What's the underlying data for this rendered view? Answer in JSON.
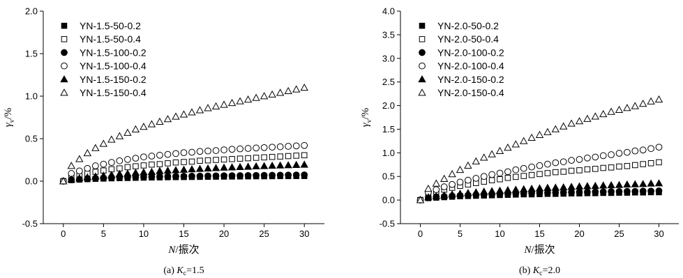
{
  "chart_data": [
    {
      "type": "scatter",
      "caption_prefix": "(a) ",
      "caption_k": "K",
      "caption_sub": "c",
      "caption_value": "=1.5",
      "xlabel_var": "N",
      "xlabel_unit": "/振次",
      "ylabel_var": "γ",
      "ylabel_sub": "v",
      "ylabel_unit": "/%",
      "xlim": [
        -2.5,
        32.5
      ],
      "ylim": [
        -0.5,
        2.0
      ],
      "xticks": [
        0,
        5,
        10,
        15,
        20,
        25,
        30
      ],
      "xtick_labels": [
        "0",
        "5",
        "10",
        "15",
        "20",
        "25",
        "30"
      ],
      "yticks": [
        -0.5,
        0.0,
        0.5,
        1.0,
        1.5,
        2.0
      ],
      "ytick_labels": [
        "-0.5",
        "0.0",
        "0.5",
        "1.0",
        "1.5",
        "2.0"
      ],
      "grid": false,
      "legend_position": "top-left",
      "x": [
        0,
        1,
        2,
        3,
        4,
        5,
        6,
        7,
        8,
        9,
        10,
        11,
        12,
        13,
        14,
        15,
        16,
        17,
        18,
        19,
        20,
        21,
        22,
        23,
        24,
        25,
        26,
        27,
        28,
        29,
        30
      ],
      "series": [
        {
          "name": "YN-1.5-50-0.2",
          "marker": "square-filled",
          "values": [
            0,
            0.012,
            0.018,
            0.023,
            0.027,
            0.03,
            0.033,
            0.035,
            0.037,
            0.039,
            0.041,
            0.043,
            0.044,
            0.046,
            0.047,
            0.048,
            0.049,
            0.05,
            0.051,
            0.052,
            0.053,
            0.054,
            0.055,
            0.056,
            0.057,
            0.057,
            0.058,
            0.059,
            0.059,
            0.06,
            0.06
          ]
        },
        {
          "name": "YN-1.5-50-0.4",
          "marker": "square-open",
          "values": [
            0,
            0.05,
            0.07,
            0.09,
            0.11,
            0.125,
            0.14,
            0.15,
            0.165,
            0.175,
            0.185,
            0.195,
            0.2,
            0.21,
            0.22,
            0.225,
            0.23,
            0.24,
            0.245,
            0.25,
            0.255,
            0.26,
            0.265,
            0.27,
            0.275,
            0.28,
            0.285,
            0.29,
            0.295,
            0.3,
            0.305
          ]
        },
        {
          "name": "YN-1.5-100-0.2",
          "marker": "circle-filled",
          "values": [
            0,
            0.015,
            0.022,
            0.028,
            0.032,
            0.036,
            0.039,
            0.042,
            0.045,
            0.047,
            0.049,
            0.051,
            0.053,
            0.055,
            0.056,
            0.058,
            0.059,
            0.06,
            0.062,
            0.063,
            0.064,
            0.065,
            0.066,
            0.067,
            0.068,
            0.069,
            0.07,
            0.071,
            0.072,
            0.073,
            0.074
          ]
        },
        {
          "name": "YN-1.5-100-0.4",
          "marker": "circle-open",
          "values": [
            0,
            0.09,
            0.12,
            0.15,
            0.18,
            0.2,
            0.22,
            0.24,
            0.255,
            0.27,
            0.285,
            0.295,
            0.305,
            0.315,
            0.325,
            0.335,
            0.34,
            0.35,
            0.355,
            0.36,
            0.368,
            0.375,
            0.38,
            0.385,
            0.39,
            0.395,
            0.4,
            0.405,
            0.41,
            0.415,
            0.42
          ]
        },
        {
          "name": "YN-1.5-150-0.2",
          "marker": "triangle-filled",
          "values": [
            0,
            0.02,
            0.035,
            0.045,
            0.055,
            0.065,
            0.075,
            0.085,
            0.09,
            0.1,
            0.105,
            0.11,
            0.12,
            0.125,
            0.13,
            0.135,
            0.14,
            0.145,
            0.15,
            0.155,
            0.16,
            0.163,
            0.167,
            0.17,
            0.175,
            0.178,
            0.182,
            0.185,
            0.188,
            0.192,
            0.195
          ]
        },
        {
          "name": "YN-1.5-150-0.4",
          "marker": "triangle-open",
          "values": [
            0,
            0.18,
            0.26,
            0.33,
            0.39,
            0.44,
            0.49,
            0.53,
            0.57,
            0.61,
            0.64,
            0.67,
            0.7,
            0.73,
            0.76,
            0.785,
            0.81,
            0.835,
            0.86,
            0.88,
            0.9,
            0.92,
            0.94,
            0.96,
            0.98,
            1.0,
            1.02,
            1.04,
            1.06,
            1.08,
            1.1
          ]
        }
      ]
    },
    {
      "type": "scatter",
      "caption_prefix": "(b) ",
      "caption_k": "K",
      "caption_sub": "c",
      "caption_value": "=2.0",
      "xlabel_var": "N",
      "xlabel_unit": "/振次",
      "ylabel_var": "γ",
      "ylabel_sub": "v",
      "ylabel_unit": "/%",
      "xlim": [
        -2.5,
        32.5
      ],
      "ylim": [
        -0.5,
        4.0
      ],
      "xticks": [
        0,
        5,
        10,
        15,
        20,
        25,
        30
      ],
      "xtick_labels": [
        "0",
        "5",
        "10",
        "15",
        "20",
        "25",
        "30"
      ],
      "yticks": [
        -0.5,
        0.0,
        0.5,
        1.0,
        1.5,
        2.0,
        2.5,
        3.0,
        3.5,
        4.0
      ],
      "ytick_labels": [
        "-0.5",
        "0.0",
        "0.5",
        "1.0",
        "1.5",
        "2.0",
        "2.5",
        "3.0",
        "3.5",
        "4.0"
      ],
      "grid": false,
      "legend_position": "top-left",
      "x": [
        0,
        1,
        2,
        3,
        4,
        5,
        6,
        7,
        8,
        9,
        10,
        11,
        12,
        13,
        14,
        15,
        16,
        17,
        18,
        19,
        20,
        21,
        22,
        23,
        24,
        25,
        26,
        27,
        28,
        29,
        30
      ],
      "series": [
        {
          "name": "YN-2.0-50-0.2",
          "marker": "square-filled",
          "values": [
            0,
            0.04,
            0.05,
            0.06,
            0.07,
            0.08,
            0.085,
            0.09,
            0.095,
            0.1,
            0.105,
            0.11,
            0.115,
            0.12,
            0.12,
            0.125,
            0.13,
            0.13,
            0.135,
            0.14,
            0.14,
            0.145,
            0.145,
            0.15,
            0.15,
            0.155,
            0.155,
            0.16,
            0.16,
            0.165,
            0.165
          ]
        },
        {
          "name": "YN-2.0-50-0.4",
          "marker": "square-open",
          "values": [
            0,
            0.14,
            0.18,
            0.22,
            0.26,
            0.3,
            0.33,
            0.36,
            0.39,
            0.42,
            0.44,
            0.47,
            0.49,
            0.51,
            0.53,
            0.55,
            0.57,
            0.59,
            0.6,
            0.62,
            0.63,
            0.65,
            0.66,
            0.68,
            0.69,
            0.71,
            0.72,
            0.74,
            0.76,
            0.78,
            0.8
          ]
        },
        {
          "name": "YN-2.0-100-0.2",
          "marker": "circle-filled",
          "values": [
            0,
            0.05,
            0.065,
            0.075,
            0.085,
            0.095,
            0.1,
            0.11,
            0.115,
            0.12,
            0.125,
            0.13,
            0.135,
            0.14,
            0.145,
            0.15,
            0.155,
            0.16,
            0.16,
            0.165,
            0.17,
            0.17,
            0.175,
            0.175,
            0.18,
            0.18,
            0.185,
            0.185,
            0.19,
            0.19,
            0.195
          ]
        },
        {
          "name": "YN-2.0-100-0.4",
          "marker": "circle-open",
          "values": [
            0,
            0.16,
            0.22,
            0.28,
            0.33,
            0.38,
            0.42,
            0.46,
            0.5,
            0.54,
            0.57,
            0.6,
            0.64,
            0.67,
            0.7,
            0.73,
            0.76,
            0.79,
            0.81,
            0.84,
            0.86,
            0.89,
            0.91,
            0.94,
            0.96,
            0.99,
            1.01,
            1.04,
            1.06,
            1.09,
            1.12
          ]
        },
        {
          "name": "YN-2.0-150-0.2",
          "marker": "triangle-filled",
          "values": [
            0,
            0.06,
            0.08,
            0.1,
            0.12,
            0.135,
            0.15,
            0.165,
            0.18,
            0.19,
            0.2,
            0.21,
            0.22,
            0.23,
            0.24,
            0.25,
            0.26,
            0.265,
            0.27,
            0.28,
            0.29,
            0.295,
            0.3,
            0.31,
            0.315,
            0.32,
            0.33,
            0.335,
            0.34,
            0.35,
            0.355
          ]
        },
        {
          "name": "YN-2.0-150-0.4",
          "marker": "triangle-open",
          "values": [
            0,
            0.24,
            0.35,
            0.45,
            0.55,
            0.64,
            0.73,
            0.82,
            0.9,
            0.97,
            1.04,
            1.11,
            1.18,
            1.25,
            1.32,
            1.38,
            1.44,
            1.5,
            1.56,
            1.62,
            1.67,
            1.72,
            1.77,
            1.82,
            1.87,
            1.91,
            1.95,
            1.99,
            2.04,
            2.09,
            2.13
          ]
        }
      ]
    }
  ]
}
